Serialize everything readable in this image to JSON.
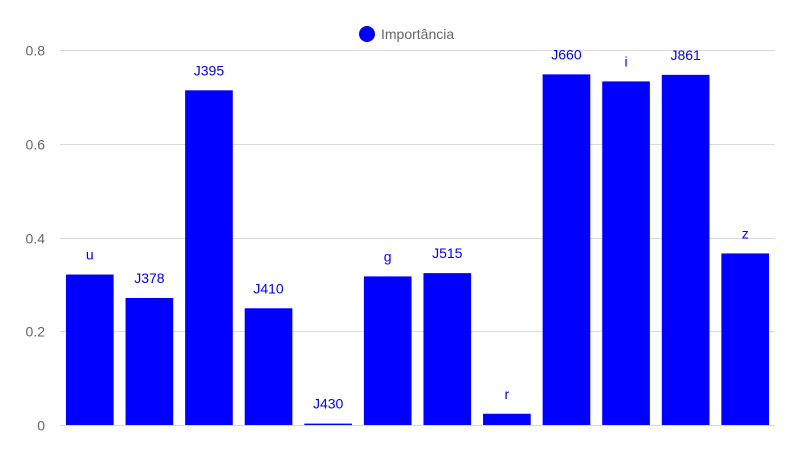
{
  "colors": {
    "bar": "#0000ff",
    "grid": "#d9d9d9",
    "text": "#666666",
    "label": "#0000ff"
  },
  "chart_data": {
    "type": "bar",
    "categories": [
      "u",
      "J378",
      "J395",
      "J410",
      "J430",
      "g",
      "J515",
      "r",
      "J660",
      "i",
      "J861",
      "z"
    ],
    "series": [
      {
        "name": "Importância",
        "values": [
          0.321,
          0.271,
          0.714,
          0.249,
          0.003,
          0.317,
          0.324,
          0.024,
          0.748,
          0.733,
          0.747,
          0.366
        ]
      }
    ],
    "title": "",
    "xlabel": "",
    "ylabel": "",
    "ylim": [
      0,
      0.8
    ],
    "yticks": [
      {
        "value": 0,
        "label": "0"
      },
      {
        "value": 0.2,
        "label": "0.2"
      },
      {
        "value": 0.4,
        "label": "0.4"
      },
      {
        "value": 0.6,
        "label": "0.6"
      },
      {
        "value": 0.8,
        "label": "0.8"
      }
    ],
    "grid": true,
    "legend": {
      "position": "top-center",
      "entries": [
        "Importância"
      ]
    },
    "bar_labels": "category-name-above-bar"
  }
}
